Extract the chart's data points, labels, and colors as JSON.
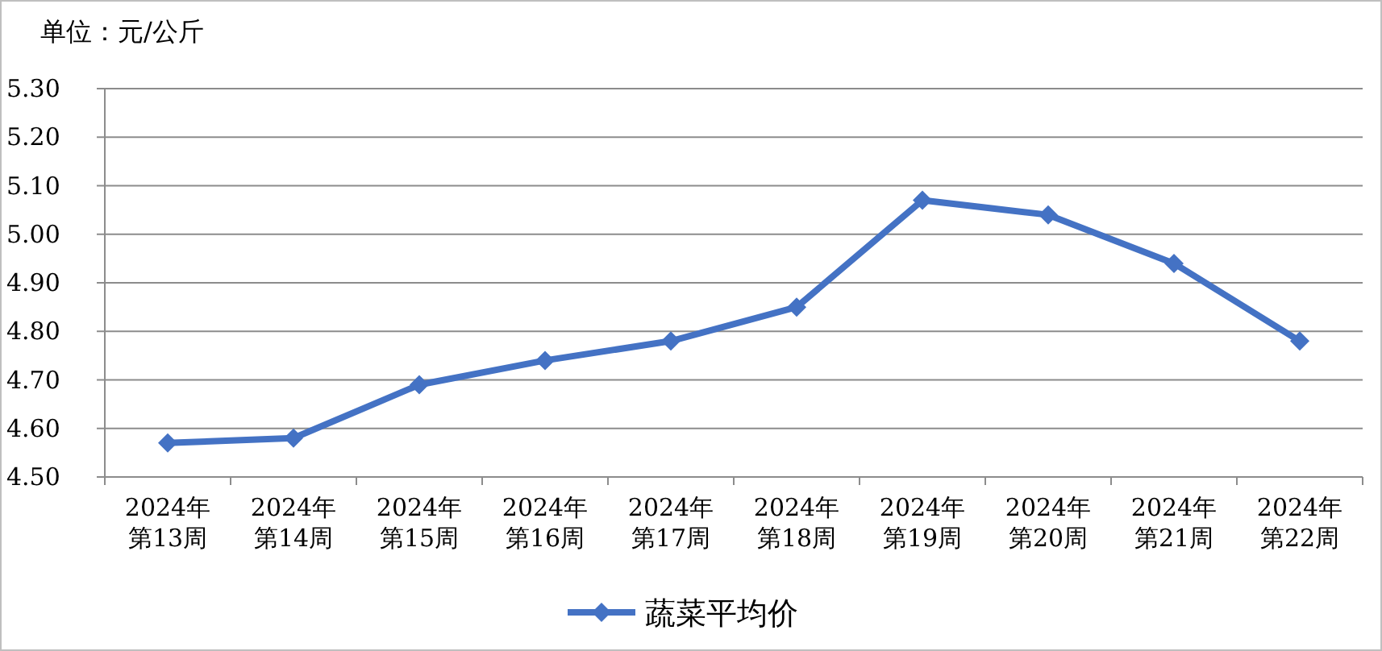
{
  "chart_data": {
    "type": "line",
    "title": "单位：元/公斤",
    "categories": [
      "2024年第13周",
      "2024年第14周",
      "2024年第15周",
      "2024年第16周",
      "2024年第17周",
      "2024年第18周",
      "2024年第19周",
      "2024年第20周",
      "2024年第21周",
      "2024年第22周"
    ],
    "series": [
      {
        "name": "蔬菜平均价",
        "color": "#4472c4",
        "values": [
          4.57,
          4.58,
          4.69,
          4.74,
          4.78,
          4.85,
          5.07,
          5.04,
          4.94,
          4.78
        ]
      }
    ],
    "ylim": [
      4.5,
      5.3
    ],
    "yticks": [
      {
        "value": 4.5,
        "label": "4.50"
      },
      {
        "value": 4.6,
        "label": "4.60"
      },
      {
        "value": 4.7,
        "label": "4.70"
      },
      {
        "value": 4.8,
        "label": "4.80"
      },
      {
        "value": 4.9,
        "label": "4.90"
      },
      {
        "value": 5.0,
        "label": "5.00"
      },
      {
        "value": 5.1,
        "label": "5.10"
      },
      {
        "value": 5.2,
        "label": "5.20"
      },
      {
        "value": 5.3,
        "label": "5.30"
      }
    ],
    "grid": "y",
    "legend": "bottom",
    "marker": "diamond",
    "line_style": "solid"
  }
}
